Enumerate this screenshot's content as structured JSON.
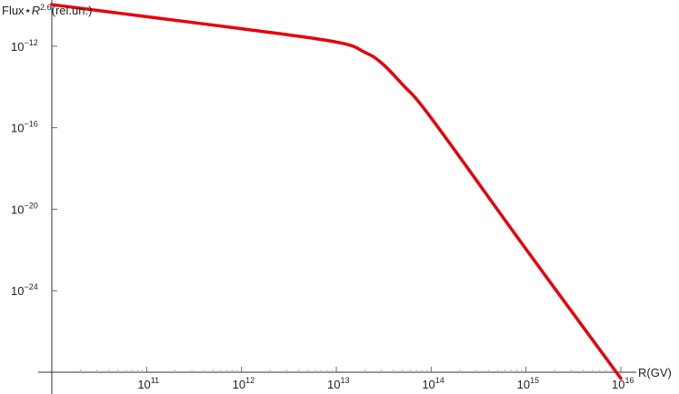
{
  "chart_data": {
    "type": "line",
    "xscale": "log",
    "yscale": "log",
    "xlim": [
      10000000000.0,
      1e+16
    ],
    "ylim": [
      1e-28,
      1e-10
    ],
    "ylabel": {
      "prefix": "Flux",
      "operator": "⋆",
      "variable": "R",
      "exponent": "2.6",
      "suffix": "(rel.un.)"
    },
    "xlabel": "R(GV)",
    "xticks": [
      {
        "value": 100000000000.0,
        "base": "10",
        "exp": "11"
      },
      {
        "value": 1000000000000.0,
        "base": "10",
        "exp": "12"
      },
      {
        "value": 10000000000000.0,
        "base": "10",
        "exp": "13"
      },
      {
        "value": 100000000000000.0,
        "base": "10",
        "exp": "14"
      },
      {
        "value": 1000000000000000.0,
        "base": "10",
        "exp": "15"
      },
      {
        "value": 1e+16,
        "base": "10",
        "exp": "16"
      }
    ],
    "yticks": [
      {
        "value": 1e-12,
        "base": "10",
        "exp": "−12"
      },
      {
        "value": 1e-16,
        "base": "10",
        "exp": "−16"
      },
      {
        "value": 1e-20,
        "base": "10",
        "exp": "−20"
      },
      {
        "value": 1e-24,
        "base": "10",
        "exp": "−24"
      }
    ],
    "series": [
      {
        "color": "#e8000b",
        "x": [
          10000000000.0,
          100000000000.0,
          1000000000000.0,
          10000000000000.0,
          20000000000000.0,
          30000000000000.0,
          50000000000000.0,
          100000000000000.0,
          1000000000000000.0,
          1e+16
        ],
        "y": [
          1.1e-10,
          2.8e-11,
          7.2e-12,
          1.6e-12,
          5e-13,
          1.5e-13,
          1.3e-14,
          3e-16,
          1.1e-22,
          5e-29
        ]
      }
    ],
    "grid": false,
    "legend": "none"
  }
}
